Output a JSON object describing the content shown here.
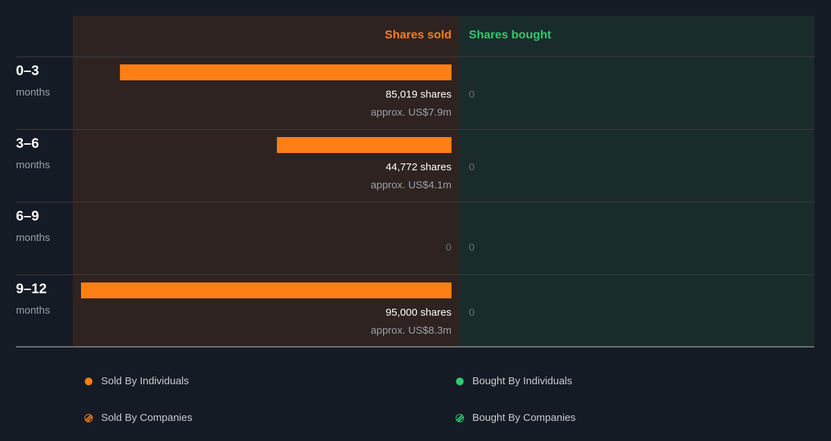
{
  "chart_data": {
    "type": "bar",
    "headers": [
      "Shares sold",
      "Shares bought"
    ],
    "header_colors": [
      "#ff7f17",
      "#2ecc71"
    ],
    "categories": [
      "0–3",
      "3–6",
      "6–9",
      "9–12"
    ],
    "category_unit": "months",
    "series": [
      {
        "name": "Sold By Individuals",
        "color": "#ff7f17",
        "side": "sold",
        "values": [
          85019,
          44772,
          0,
          95000
        ],
        "value_labels": [
          "85,019 shares",
          "44,772 shares",
          "0",
          "95,000 shares"
        ],
        "approx_labels": [
          "approx. US$7.9m",
          "approx. US$4.1m",
          null,
          "approx. US$8.3m"
        ]
      },
      {
        "name": "Bought By Individuals",
        "color": "#2ecc71",
        "side": "bought",
        "values": [
          0,
          0,
          0,
          0
        ]
      }
    ],
    "extra_legend": [
      {
        "name": "Sold By Companies",
        "color": "#ff7f17"
      },
      {
        "name": "Bought By Companies",
        "color": "#2ecc71"
      }
    ]
  }
}
